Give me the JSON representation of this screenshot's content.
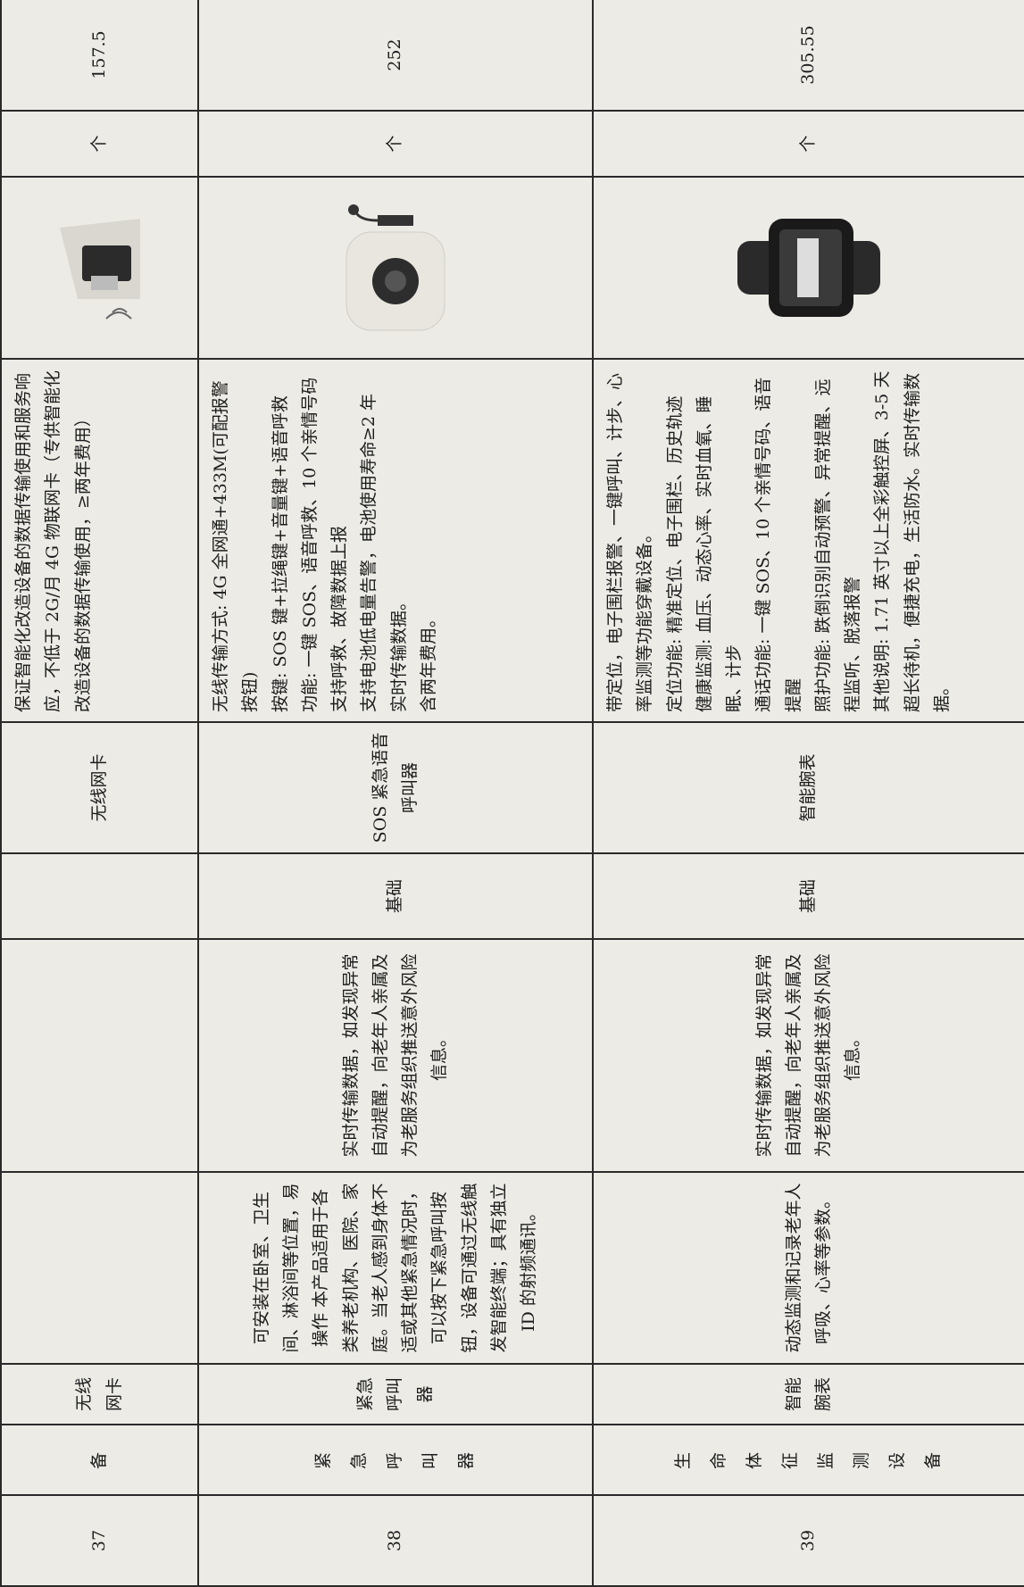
{
  "table": {
    "rows": [
      {
        "number": "37",
        "category": "备",
        "name": "无线网卡",
        "product": "无线网卡",
        "specs": [
          "保证智能化改造设备的数据传输使用和服务响应，不低于 2G/月 4G 物联网卡（专供智能化改造设备的数据传输使用，≥两年费用）"
        ],
        "unit": "个",
        "price": "157.5"
      },
      {
        "number": "38",
        "category": "紧急呼叫器",
        "name": "紧急呼叫器",
        "description": "可安装在卧室、卫生间、淋浴间等位置，易操作 本产品适用于各类养老机构、医院、家庭。当老人感到身体不适或其他紧急情况时，可以按下紧急呼叫按钮，设备可通过无线触发智能终端；具有独立 ID 的射频通讯。",
        "function": "实时传输数据，如发现异常自动提醒，向老年人亲属及为老服务组织推送意外风险信息。",
        "level": "基础",
        "product": "SOS 紧急语音呼叫器",
        "specs": [
          "无线传输方式: 4G 全网通+433M(可配报警按钮)",
          "按键: SOS 键+拉绳键+音量键+语音呼救",
          "功能: 一键 SOS、语音呼救、10 个亲情号码",
          "支持呼救、故障数据上报",
          "支持电池低电量告警，电池使用寿命≥2 年",
          "实时传输数据。",
          "含两年费用。"
        ],
        "unit": "个",
        "price": "252"
      },
      {
        "number": "39",
        "category": "生命体征监测设备",
        "name": "智能腕表",
        "description": "动态监测和记录老年人呼吸、心率等参数。",
        "function": "实时传输数据，如发现异常自动提醒，向老年人亲属及为老服务组织推送意外风险信息。",
        "level": "基础",
        "product": "智能腕表",
        "specs": [
          "带定位，电子围栏报警、一键呼叫、计步、心率监测等功能穿戴设备。",
          "定位功能: 精准定位、电子围栏、历史轨迹",
          "健康监测: 血压、动态心率、实时血氧、睡眠、计步",
          "通话功能: 一键 SOS、10 个亲情号码、语音提醒",
          "照护功能: 跌倒识别自动预警、异常提醒、远程监听、脱落报警",
          "其他说明: 1.71 英寸以上全彩触控屏、3-5 天超长待机，便捷充电，生活防水。实时传输数据。"
        ],
        "unit": "个",
        "price": "305.55"
      }
    ]
  }
}
